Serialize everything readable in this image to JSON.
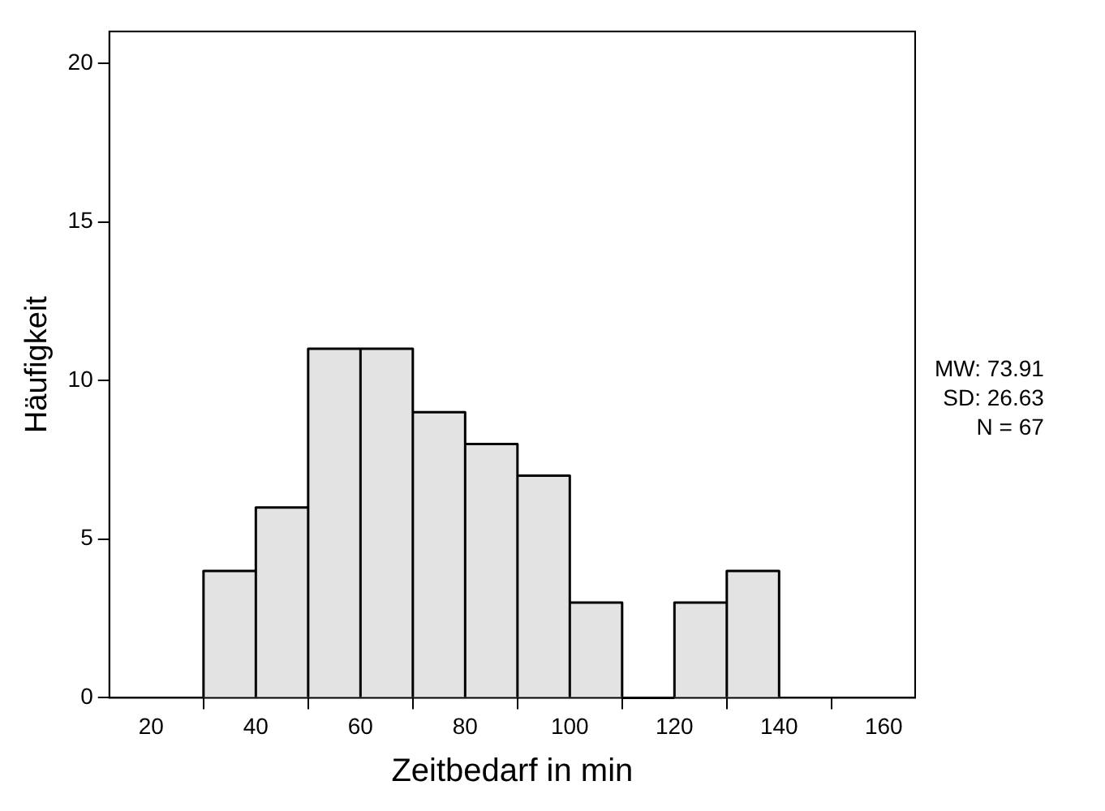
{
  "chart_data": {
    "type": "histogram",
    "xlabel": "Zeitbedarf in min",
    "ylabel": "Häufigkeit",
    "bins": [
      30,
      40,
      50,
      60,
      70,
      80,
      90,
      100,
      110,
      120,
      130,
      140
    ],
    "values": [
      4,
      6,
      11,
      11,
      9,
      8,
      7,
      3,
      0,
      3,
      4
    ],
    "color": "#e3e3e3",
    "xlim": [
      12,
      166
    ],
    "xticks": [
      20,
      40,
      60,
      80,
      100,
      120,
      140,
      160
    ],
    "ylim": [
      0,
      21
    ],
    "yticks": [
      0,
      5,
      10,
      15,
      20
    ],
    "grid": false,
    "annotations": [
      "MW: 73.91",
      "SD: 26.63",
      "N = 67"
    ]
  }
}
